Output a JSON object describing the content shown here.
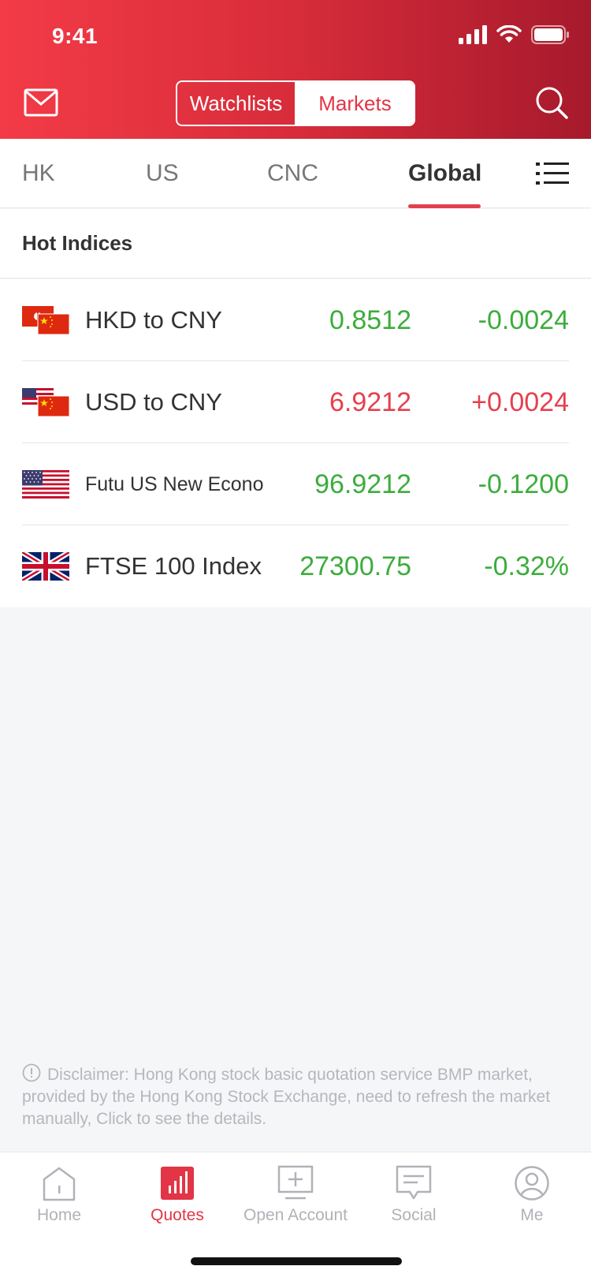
{
  "status_bar": {
    "time": "9:41"
  },
  "header": {
    "segments": [
      {
        "label": "Watchlists",
        "selected": false
      },
      {
        "label": "Markets",
        "selected": true
      }
    ],
    "left_icon": "mail-icon",
    "right_icon": "search-icon"
  },
  "tabs": [
    {
      "label": "HK",
      "active": false
    },
    {
      "label": "US",
      "active": false
    },
    {
      "label": "CNC",
      "active": false
    },
    {
      "label": "Global",
      "active": true
    }
  ],
  "section": {
    "title": "Hot Indices"
  },
  "rows": [
    {
      "name": "HKD to CNY",
      "flag": "hk-cn-flag",
      "price": "0.8512",
      "change": "-0.0024",
      "trend": "down"
    },
    {
      "name": "USD to CNY",
      "flag": "us-cn-flag",
      "price": "6.9212",
      "change": "+0.0024",
      "trend": "up"
    },
    {
      "name": "Futu US New Econo",
      "flag": "us-flag",
      "price": "96.9212",
      "change": "-0.1200",
      "trend": "down"
    },
    {
      "name": "FTSE 100 Index",
      "flag": "uk-flag",
      "price": "27300.75",
      "change": "-0.32%",
      "trend": "down"
    }
  ],
  "disclaimer": "Disclaimer: Hong Kong stock basic quotation service BMP market, provided by the Hong Kong Stock Exchange, need to refresh the market manually, Click to see the details.",
  "colors": {
    "brand_red": "#e23545",
    "up": "#e6404e",
    "down": "#3cad3c"
  },
  "bottom_nav": [
    {
      "label": "Home",
      "icon": "home-icon",
      "active": false
    },
    {
      "label": "Quotes",
      "icon": "quotes-icon",
      "active": true
    },
    {
      "label": "Open Account",
      "icon": "open-account-icon",
      "active": false
    },
    {
      "label": "Social",
      "icon": "social-icon",
      "active": false
    },
    {
      "label": "Me",
      "icon": "me-icon",
      "active": false
    }
  ]
}
